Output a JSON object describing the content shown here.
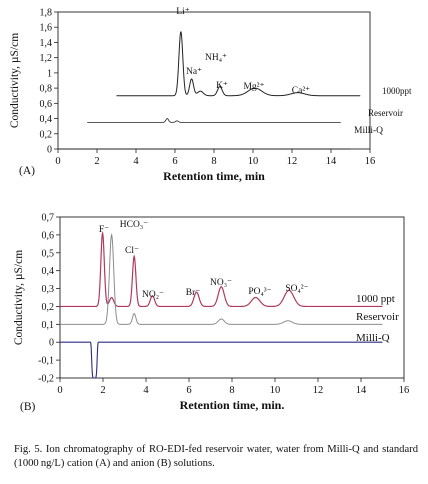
{
  "caption": "Fig. 5. Ion chromatography of RO-EDI-fed reservoir water, water from Milli-Q and standard (1000 ng/L) cation (A) and anion (B) solutions.",
  "chart_data": [
    {
      "type": "line",
      "panel_label": "(A)",
      "xlabel": "Retention time, min",
      "ylabel": "Conductivity, µS/cm",
      "xlim": [
        0,
        16
      ],
      "ylim": [
        0,
        1.8
      ],
      "xticks": [
        0,
        2,
        4,
        6,
        8,
        10,
        12,
        14,
        16
      ],
      "yticks": [
        0,
        0.2,
        0.4,
        0.6,
        0.8,
        1.0,
        1.2,
        1.4,
        1.6,
        1.8
      ],
      "ytick_labels": [
        "0",
        "0,2",
        "0,4",
        "0,6",
        "0,8",
        "1",
        "1,2",
        "1,4",
        "1,6",
        "1,8"
      ],
      "grid": false,
      "series": [
        {
          "name": "1000ppt",
          "color": "#222222",
          "x_range": [
            3,
            15.5
          ],
          "baseline": 0.7,
          "peaks": [
            {
              "label": "Li⁺",
              "x": 6.3,
              "height": 0.84,
              "width": 0.1
            },
            {
              "label": "Na⁺",
              "x": 6.85,
              "height": 0.22,
              "width": 0.1
            },
            {
              "label": "NH₄⁺",
              "x": 7.3,
              "height": 0.06,
              "width": 0.15
            },
            {
              "label": "K⁺",
              "x": 8.3,
              "height": 0.12,
              "width": 0.12
            },
            {
              "label": "Mg²⁺",
              "x": 10.1,
              "height": 0.1,
              "width": 0.35
            },
            {
              "label": "Ca²⁺",
              "x": 12.3,
              "height": 0.04,
              "width": 0.35
            }
          ]
        },
        {
          "name": "Reservoir",
          "color": "#222222",
          "x_range": [
            1.5,
            14.5
          ],
          "baseline": 0.35,
          "peaks": [
            {
              "x": 5.6,
              "height": 0.05,
              "width": 0.07
            },
            {
              "x": 6.1,
              "height": 0.02,
              "width": 0.07
            }
          ]
        },
        {
          "name": "Milli-Q",
          "color": "#222222",
          "x_range": [
            0,
            15
          ],
          "baseline": 0.0,
          "peaks": []
        }
      ]
    },
    {
      "type": "line",
      "panel_label": "(B)",
      "xlabel": "Retention time, min.",
      "ylabel": "Conductivity, µS/cm",
      "xlim": [
        0,
        16
      ],
      "ylim": [
        -0.2,
        0.7
      ],
      "xticks": [
        0,
        2,
        4,
        6,
        8,
        10,
        12,
        14,
        16
      ],
      "yticks": [
        -0.2,
        -0.1,
        0,
        0.1,
        0.2,
        0.3,
        0.4,
        0.5,
        0.6,
        0.7
      ],
      "ytick_labels": [
        "-0,2",
        "-0,1",
        "0",
        "0,1",
        "0,2",
        "0,3",
        "0,4",
        "0,5",
        "0,6",
        "0,7"
      ],
      "grid": false,
      "series": [
        {
          "name": "1000 ppt",
          "color": "#b03a5b",
          "x_range": [
            0,
            15
          ],
          "baseline": 0.2,
          "peaks": [
            {
              "label": "F⁻",
              "x": 1.98,
              "height": 0.41,
              "width": 0.08
            },
            {
              "label": "HCO₃⁻",
              "x": 2.4,
              "height": 0.05,
              "width": 0.1
            },
            {
              "label": "Cl⁻",
              "x": 3.45,
              "height": 0.28,
              "width": 0.08
            },
            {
              "label": "NO₂⁻",
              "x": 4.3,
              "height": 0.06,
              "width": 0.1
            },
            {
              "label": "Br⁻",
              "x": 6.35,
              "height": 0.08,
              "width": 0.12
            },
            {
              "label": "NO₃⁻",
              "x": 7.5,
              "height": 0.11,
              "width": 0.14
            },
            {
              "label": "PO₄³⁻",
              "x": 9.1,
              "height": 0.05,
              "width": 0.2
            },
            {
              "label": "SO₄²⁻",
              "x": 10.65,
              "height": 0.09,
              "width": 0.22
            }
          ]
        },
        {
          "name": "Reservoir",
          "color": "#8c8c8c",
          "x_range": [
            0,
            15
          ],
          "baseline": 0.1,
          "peaks": [
            {
              "x": 2.4,
              "height": 0.5,
              "width": 0.1
            },
            {
              "x": 3.45,
              "height": 0.06,
              "width": 0.08
            },
            {
              "x": 7.5,
              "height": 0.03,
              "width": 0.14
            },
            {
              "x": 10.6,
              "height": 0.02,
              "width": 0.2
            }
          ]
        },
        {
          "name": "Milli-Q",
          "color": "#2b2b80",
          "x_range": [
            0,
            15
          ],
          "baseline": 0.0,
          "dip": {
            "x": 1.6,
            "min": -0.2
          },
          "peaks": []
        }
      ]
    }
  ]
}
